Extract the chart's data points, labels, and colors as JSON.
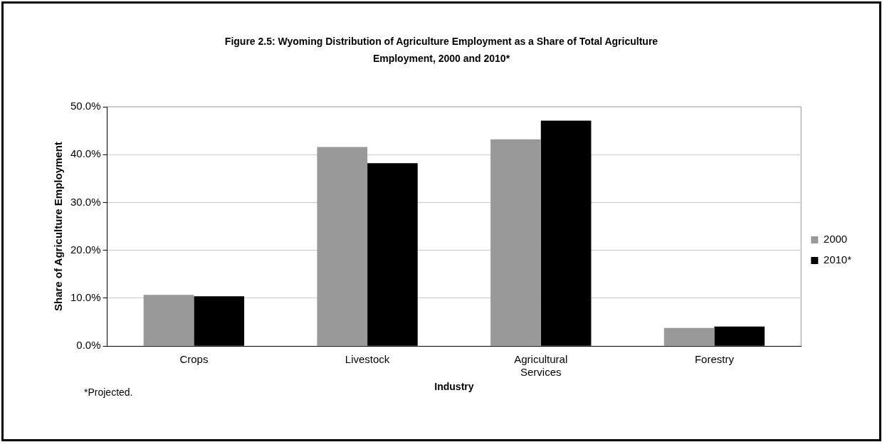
{
  "chart_data": {
    "type": "bar",
    "title": "Figure 2.5: Wyoming Distribution of Agriculture Employment as a Share of Total Agriculture Employment, 2000 and 2010*",
    "xlabel": "Industry",
    "ylabel": "Share of Agriculture Employment",
    "annotations": [
      "*Projected."
    ],
    "categories": [
      "Crops",
      "Livestock",
      "Agricultural Services",
      "Forestry"
    ],
    "series": [
      {
        "name": "2000",
        "color": "#999999",
        "values": [
          10.7,
          41.6,
          43.2,
          3.8
        ]
      },
      {
        "name": "2010*",
        "color": "#000000",
        "values": [
          10.4,
          38.2,
          47.1,
          4.1
        ]
      }
    ],
    "ylim": [
      0,
      50
    ],
    "yticks": [
      {
        "value": 0,
        "label": "0.0%"
      },
      {
        "value": 10,
        "label": "10.0%"
      },
      {
        "value": 20,
        "label": "20.0%"
      },
      {
        "value": 30,
        "label": "30.0%"
      },
      {
        "value": 40,
        "label": "40.0%"
      },
      {
        "value": 50,
        "label": "50.0%"
      }
    ],
    "grid": "y",
    "legend": "right"
  }
}
